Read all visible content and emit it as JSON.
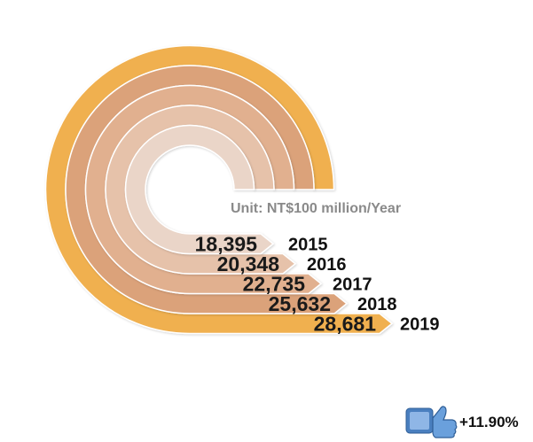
{
  "chart_data": {
    "type": "bar",
    "unit_label": "Unit: NT$100 million/Year",
    "categories": [
      "2015",
      "2016",
      "2017",
      "2018",
      "2019"
    ],
    "values": [
      18395,
      20348,
      22735,
      25632,
      28681
    ],
    "value_labels": [
      "18,395",
      "20,348",
      "22,735",
      "25,632",
      "28,681"
    ],
    "growth_label": "+11.90%",
    "colors": [
      "#ead5c8",
      "#e6c2aa",
      "#e1b08f",
      "#dba27a",
      "#f0b04f"
    ]
  },
  "icons": {
    "growth": "thumbs-up-icon"
  }
}
